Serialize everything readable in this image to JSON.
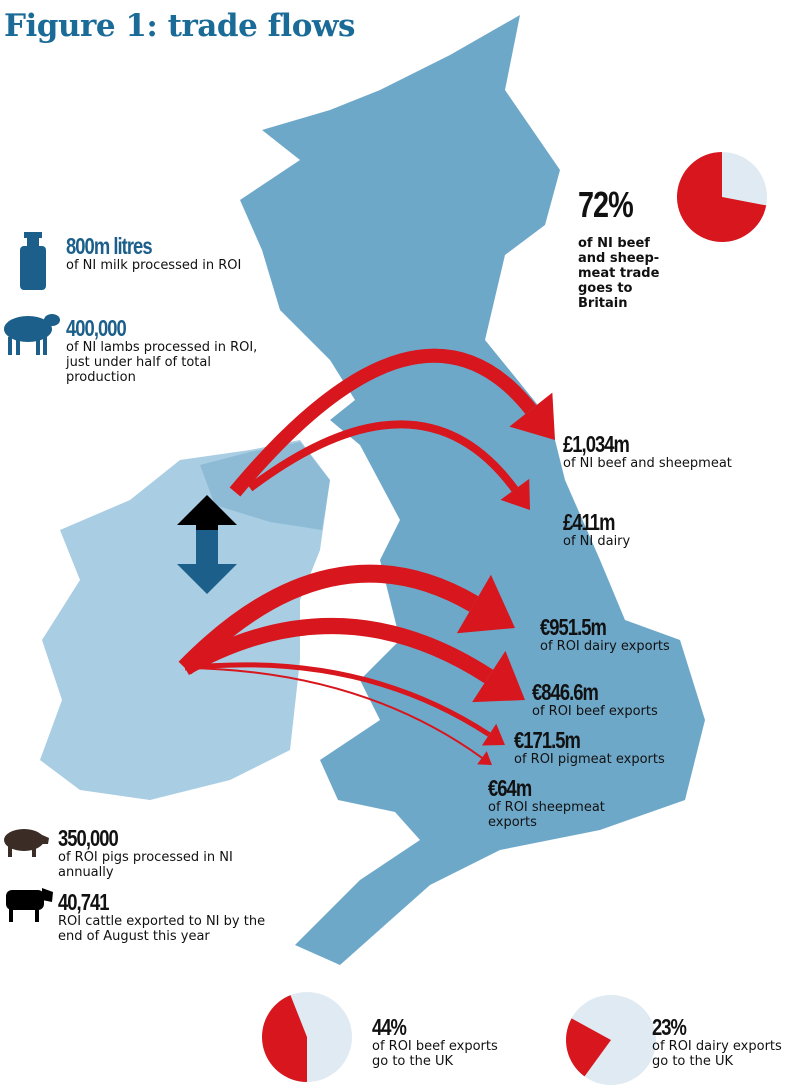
{
  "title": "Figure 1: trade flows",
  "colors": {
    "gb": "#6ea8c9",
    "ireland": "#a9cde2",
    "ni": "#8dbbd6",
    "arrow": "#d7161d",
    "accent": "#1b5f8a",
    "pie_light": "#dfeaf3"
  },
  "left_stats": [
    {
      "icon": "milk-churn-icon",
      "value": "800m litres",
      "text": "of NI milk processed in ROI"
    },
    {
      "icon": "sheep-icon",
      "value": "400,000",
      "text": "of NI lambs processed in ROI, just under half of total production"
    },
    {
      "icon": "pig-icon",
      "value": "350,000",
      "text": "of ROI pigs processed in NI annually"
    },
    {
      "icon": "cow-icon",
      "value": "40,741",
      "text": "ROI cattle exported to NI by the end of August this year"
    }
  ],
  "flows": [
    {
      "value": "£1,034m",
      "text": "of NI beef and sheepmeat"
    },
    {
      "value": "£411m",
      "text": "of NI dairy"
    },
    {
      "value": "€951.5m",
      "text": "of ROI dairy exports"
    },
    {
      "value": "€846.6m",
      "text": "of ROI beef exports"
    },
    {
      "value": "€171.5m",
      "text": "of ROI pigmeat exports"
    },
    {
      "value": "€64m",
      "text": "of ROI sheepmeat exports"
    }
  ],
  "pies": [
    {
      "value": "72%",
      "fraction": 0.72,
      "text": "of NI beef and sheep-meat trade goes to Britain"
    },
    {
      "value": "44%",
      "fraction": 0.44,
      "text": "of ROI beef exports go to the UK"
    },
    {
      "value": "23%",
      "fraction": 0.23,
      "text": "of ROI dairy exports go to the UK"
    }
  ]
}
